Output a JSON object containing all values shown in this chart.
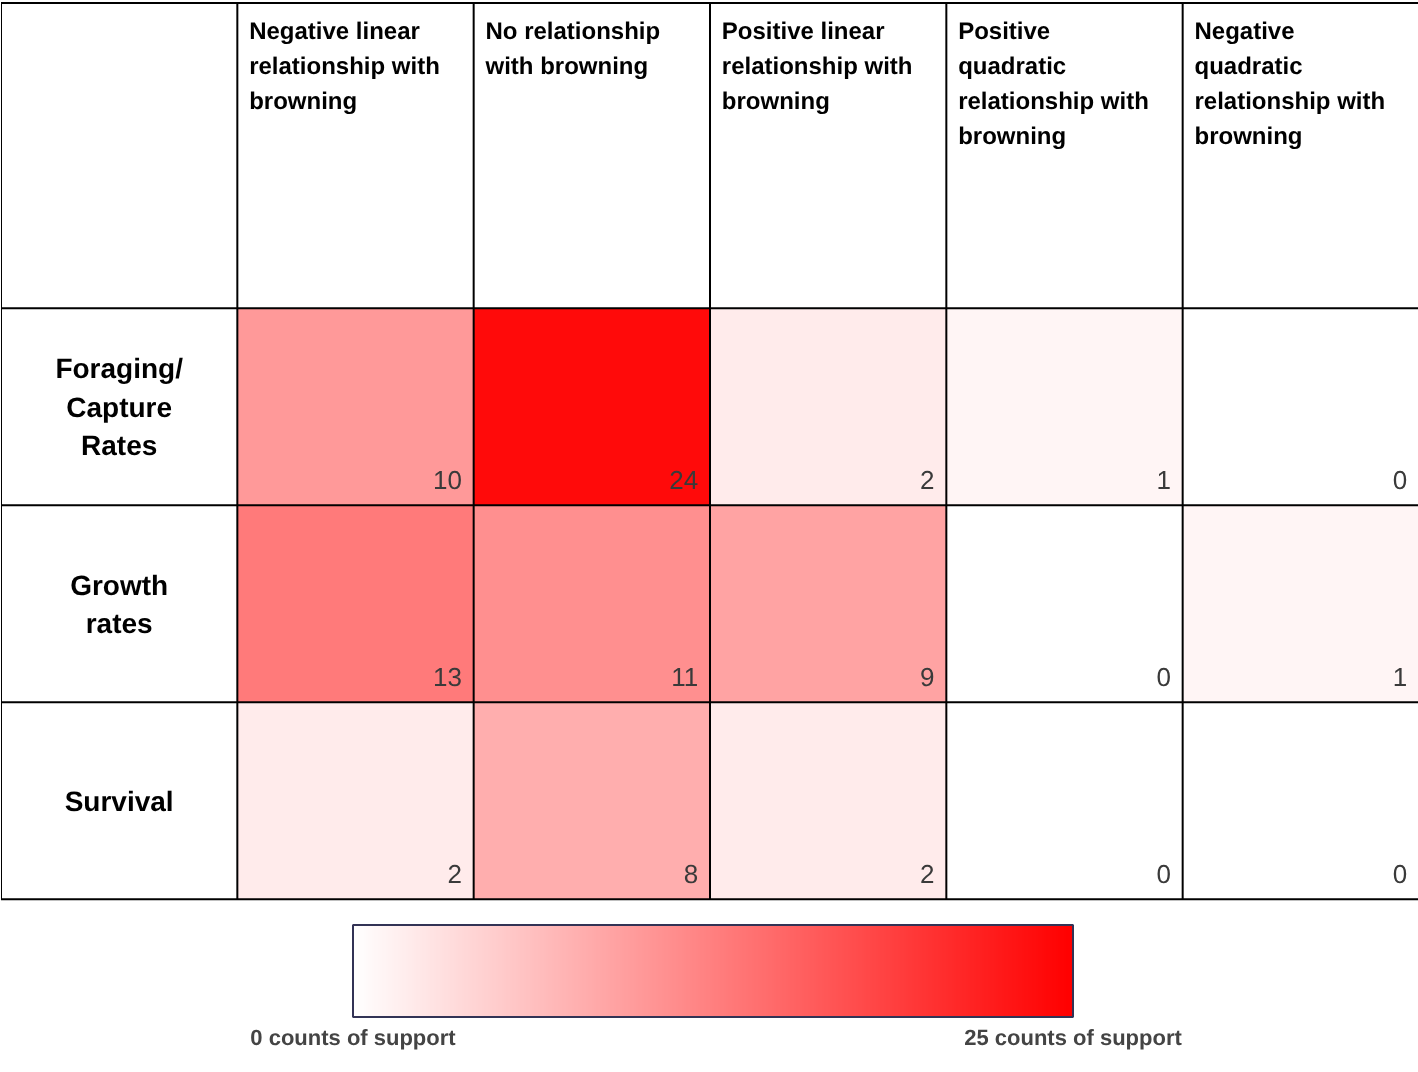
{
  "chart_data": {
    "type": "heatmap",
    "categories": [
      "Negative linear relationship with browning",
      "No relationship with browning",
      "Positive linear relationship with browning",
      "Positive quadratic relationship with browning",
      "Negative quadratic relationship with browning"
    ],
    "y_categories": [
      "Foraging/ Capture Rates",
      "Growth rates",
      "Survival"
    ],
    "cells": [
      [
        10,
        24,
        2,
        1,
        0
      ],
      [
        13,
        11,
        9,
        0,
        1
      ],
      [
        2,
        8,
        2,
        0,
        0
      ]
    ],
    "data_labels": true,
    "clim": [
      0,
      25
    ],
    "cticks": [
      {
        "value": 0,
        "label": "0 counts of support"
      },
      {
        "value": 25,
        "label": "25 counts of support"
      }
    ]
  }
}
